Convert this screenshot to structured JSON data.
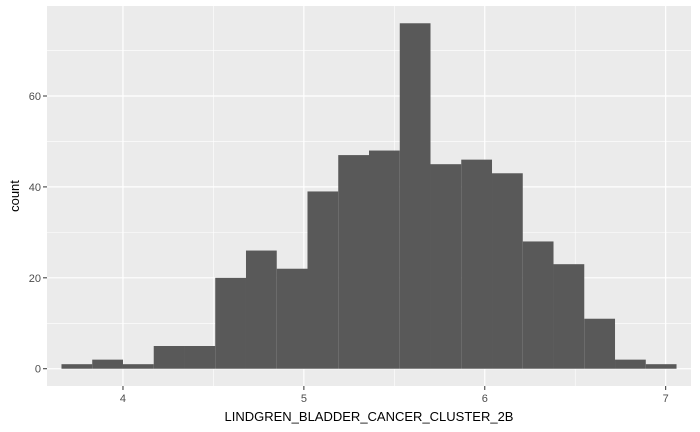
{
  "chart_data": {
    "type": "bar",
    "subtype": "histogram",
    "title": "",
    "xlabel": "LINDGREN_BLADDER_CANCER_CLUSTER_2B",
    "ylabel": "count",
    "bin_edges": [
      3.66,
      3.83,
      4.0,
      4.17,
      4.34,
      4.51,
      4.68,
      4.85,
      5.02,
      5.19,
      5.36,
      5.53,
      5.7,
      5.87,
      6.04,
      6.21,
      6.38,
      6.55,
      6.72,
      6.89,
      7.06
    ],
    "values": [
      1,
      2,
      1,
      5,
      5,
      20,
      26,
      22,
      39,
      47,
      48,
      76,
      45,
      46,
      43,
      28,
      23,
      11,
      2,
      1
    ],
    "xlim": [
      3.58,
      7.14
    ],
    "ylim": [
      -3.8,
      79.8
    ],
    "x_ticks": [
      4,
      5,
      6,
      7
    ],
    "x_tick_labels": [
      "4",
      "5",
      "6",
      "7"
    ],
    "y_ticks": [
      0,
      20,
      40,
      60
    ],
    "y_tick_labels": [
      "0",
      "20",
      "40",
      "60"
    ],
    "grid": true,
    "legend": "none",
    "colors": {
      "panel_background": "#ebebeb",
      "grid_major": "#ffffff",
      "bar_fill": "#595959",
      "tick_label": "#4d4d4d",
      "axis_title": "#000000"
    }
  }
}
